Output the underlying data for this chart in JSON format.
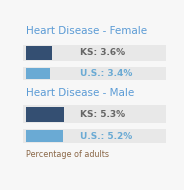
{
  "title_female": "Heart Disease - Female",
  "title_male": "Heart Disease - Male",
  "footer": "Percentage of adults",
  "ks_female": 3.6,
  "us_female": 3.4,
  "ks_male": 5.3,
  "us_male": 5.2,
  "label_ks_female": "KS: 3.6%",
  "label_us_female": "U.S.: 3.4%",
  "label_ks_male": "KS: 5.3%",
  "label_us_male": "U.S.: 5.2%",
  "color_ks": "#344f72",
  "color_us": "#6aaad4",
  "color_title": "#5b9bd5",
  "color_bg_row": "#e8e8e8",
  "color_bg_main": "#f7f7f7",
  "color_footer": "#8b6848",
  "color_label_ks": "#666666",
  "color_label_us": "#6aaad4",
  "max_val": 6.5,
  "title_fontsize": 7.5,
  "label_fontsize": 6.5,
  "footer_fontsize": 5.8
}
